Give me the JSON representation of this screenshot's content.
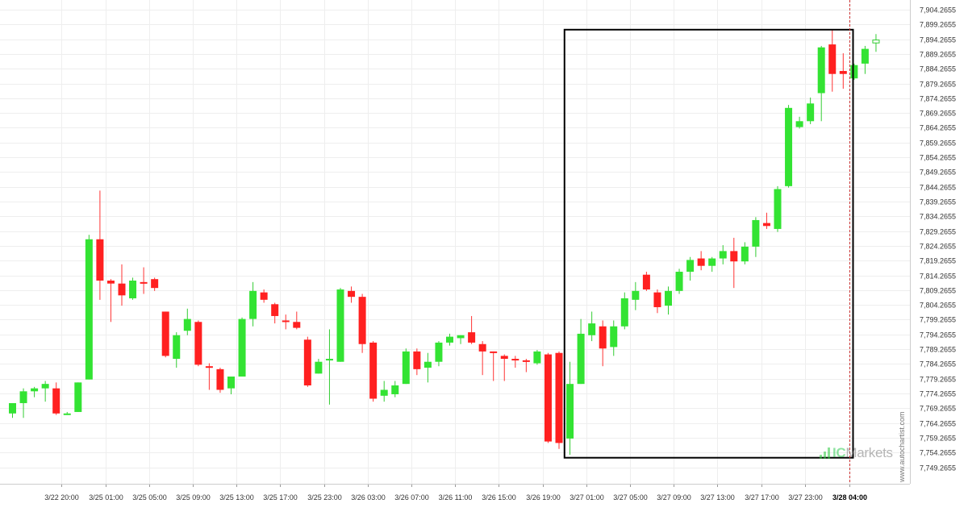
{
  "chart_data": {
    "type": "candlestick",
    "price_axis": {
      "min": 7746.0,
      "max": 7905.5,
      "labels": [
        "7,904.2655",
        "7,899.2655",
        "7,894.2655",
        "7,889.2655",
        "7,884.2655",
        "7,879.2655",
        "7,874.2655",
        "7,869.2655",
        "7,864.2655",
        "7,859.2655",
        "7,854.2655",
        "7,849.2655",
        "7,844.2655",
        "7,839.2655",
        "7,834.2655",
        "7,829.2655",
        "7,824.2655",
        "7,819.2655",
        "7,814.2655",
        "7,809.2655",
        "7,804.2655",
        "7,799.2655",
        "7,794.2655",
        "7,789.2655",
        "7,784.2655",
        "7,779.2655",
        "7,774.2655",
        "7,769.2655",
        "7,764.2655",
        "7,759.2655",
        "7,754.2655",
        "7,749.2655"
      ],
      "values": [
        7904.2655,
        7899.2655,
        7894.2655,
        7889.2655,
        7884.2655,
        7879.2655,
        7874.2655,
        7869.2655,
        7864.2655,
        7859.2655,
        7854.2655,
        7849.2655,
        7844.2655,
        7839.2655,
        7834.2655,
        7829.2655,
        7824.2655,
        7819.2655,
        7814.2655,
        7809.2655,
        7804.2655,
        7799.2655,
        7794.2655,
        7789.2655,
        7784.2655,
        7779.2655,
        7774.2655,
        7769.2655,
        7764.2655,
        7759.2655,
        7754.2655,
        7749.2655
      ]
    },
    "time_axis": {
      "labels": [
        {
          "text": "3/22 20:00",
          "index": 4.5,
          "bold": false
        },
        {
          "text": "3/25 01:00",
          "index": 8.5,
          "bold": false
        },
        {
          "text": "3/25 05:00",
          "index": 12.5,
          "bold": false
        },
        {
          "text": "3/25 09:00",
          "index": 16.5,
          "bold": false
        },
        {
          "text": "3/25 13:00",
          "index": 20.5,
          "bold": false
        },
        {
          "text": "3/25 17:00",
          "index": 24.5,
          "bold": false
        },
        {
          "text": "3/25 23:00",
          "index": 28.5,
          "bold": false
        },
        {
          "text": "3/26 03:00",
          "index": 32.5,
          "bold": false
        },
        {
          "text": "3/26 07:00",
          "index": 36.5,
          "bold": false
        },
        {
          "text": "3/26 11:00",
          "index": 40.5,
          "bold": false
        },
        {
          "text": "3/26 15:00",
          "index": 44.5,
          "bold": false
        },
        {
          "text": "3/26 19:00",
          "index": 48.5,
          "bold": false
        },
        {
          "text": "3/27 01:00",
          "index": 52.5,
          "bold": false
        },
        {
          "text": "3/27 05:00",
          "index": 56.5,
          "bold": false
        },
        {
          "text": "3/27 09:00",
          "index": 60.5,
          "bold": false
        },
        {
          "text": "3/27 13:00",
          "index": 64.5,
          "bold": false
        },
        {
          "text": "3/27 17:00",
          "index": 68.5,
          "bold": false
        },
        {
          "text": "3/27 23:00",
          "index": 72.5,
          "bold": false
        },
        {
          "text": "3/28 04:00",
          "index": 76.6,
          "bold": true
        }
      ]
    },
    "candles": [
      {
        "o": 7767.5,
        "h": 7771.0,
        "l": 7766.0,
        "c": 7771.0
      },
      {
        "o": 7771.0,
        "h": 7776.0,
        "l": 7766.0,
        "c": 7775.0
      },
      {
        "o": 7775.0,
        "h": 7776.5,
        "l": 7773.0,
        "c": 7776.0
      },
      {
        "o": 7776.0,
        "h": 7778.5,
        "l": 7771.5,
        "c": 7777.5
      },
      {
        "o": 7776.0,
        "h": 7778.0,
        "l": 7767.0,
        "c": 7767.5
      },
      {
        "o": 7767.5,
        "h": 7768.0,
        "l": 7767.0,
        "c": 7767.5
      },
      {
        "o": 7768.0,
        "h": 7778.0,
        "l": 7768.0,
        "c": 7778.0
      },
      {
        "o": 7779.0,
        "h": 7828.0,
        "l": 7779.0,
        "c": 7826.5
      },
      {
        "o": 7826.5,
        "h": 7843.0,
        "l": 7806.0,
        "c": 7812.5
      },
      {
        "o": 7812.5,
        "h": 7813.0,
        "l": 7798.5,
        "c": 7811.5
      },
      {
        "o": 7811.5,
        "h": 7818.0,
        "l": 7804.0,
        "c": 7807.5
      },
      {
        "o": 7806.5,
        "h": 7813.5,
        "l": 7806.0,
        "c": 7812.5
      },
      {
        "o": 7812.0,
        "h": 7817.0,
        "l": 7808.0,
        "c": 7811.5
      },
      {
        "o": 7813.0,
        "h": 7813.5,
        "l": 7809.0,
        "c": 7810.0
      },
      {
        "o": 7802.0,
        "h": 7802.0,
        "l": 7786.5,
        "c": 7787.0
      },
      {
        "o": 7786.0,
        "h": 7795.0,
        "l": 7783.0,
        "c": 7794.0
      },
      {
        "o": 7795.5,
        "h": 7803.0,
        "l": 7794.0,
        "c": 7799.5
      },
      {
        "o": 7798.5,
        "h": 7799.0,
        "l": 7783.5,
        "c": 7784.0
      },
      {
        "o": 7783.5,
        "h": 7784.5,
        "l": 7775.5,
        "c": 7783.0
      },
      {
        "o": 7782.5,
        "h": 7783.0,
        "l": 7774.5,
        "c": 7775.5
      },
      {
        "o": 7776.0,
        "h": 7780.0,
        "l": 7774.0,
        "c": 7780.0
      },
      {
        "o": 7780.0,
        "h": 7800.0,
        "l": 7780.0,
        "c": 7799.5
      },
      {
        "o": 7799.5,
        "h": 7812.0,
        "l": 7797.0,
        "c": 7809.0
      },
      {
        "o": 7808.5,
        "h": 7809.5,
        "l": 7805.0,
        "c": 7806.0
      },
      {
        "o": 7804.5,
        "h": 7805.0,
        "l": 7798.0,
        "c": 7800.5
      },
      {
        "o": 7799.0,
        "h": 7801.0,
        "l": 7796.0,
        "c": 7798.5
      },
      {
        "o": 7798.5,
        "h": 7802.0,
        "l": 7796.0,
        "c": 7796.5
      },
      {
        "o": 7792.5,
        "h": 7793.5,
        "l": 7776.5,
        "c": 7777.0
      },
      {
        "o": 7781.0,
        "h": 7786.0,
        "l": 7781.0,
        "c": 7785.0
      },
      {
        "o": 7786.0,
        "h": 7796.0,
        "l": 7770.5,
        "c": 7786.0
      },
      {
        "o": 7785.0,
        "h": 7810.0,
        "l": 7785.0,
        "c": 7809.5
      },
      {
        "o": 7809.0,
        "h": 7810.5,
        "l": 7805.0,
        "c": 7807.0
      },
      {
        "o": 7807.0,
        "h": 7808.0,
        "l": 7788.0,
        "c": 7791.0
      },
      {
        "o": 7791.5,
        "h": 7792.0,
        "l": 7771.5,
        "c": 7772.5
      },
      {
        "o": 7773.5,
        "h": 7778.5,
        "l": 7771.5,
        "c": 7775.5
      },
      {
        "o": 7774.0,
        "h": 7778.5,
        "l": 7773.0,
        "c": 7777.0
      },
      {
        "o": 7777.5,
        "h": 7789.5,
        "l": 7777.5,
        "c": 7788.5
      },
      {
        "o": 7788.5,
        "h": 7789.5,
        "l": 7780.5,
        "c": 7782.5
      },
      {
        "o": 7783.0,
        "h": 7788.0,
        "l": 7778.0,
        "c": 7785.0
      },
      {
        "o": 7785.0,
        "h": 7792.0,
        "l": 7783.5,
        "c": 7791.5
      },
      {
        "o": 7791.5,
        "h": 7794.5,
        "l": 7790.5,
        "c": 7793.5
      },
      {
        "o": 7793.0,
        "h": 7794.0,
        "l": 7791.0,
        "c": 7794.0
      },
      {
        "o": 7795.0,
        "h": 7800.5,
        "l": 7791.0,
        "c": 7791.5
      },
      {
        "o": 7791.0,
        "h": 7792.0,
        "l": 7780.5,
        "c": 7788.5
      },
      {
        "o": 7788.5,
        "h": 7788.5,
        "l": 7778.5,
        "c": 7788.0
      },
      {
        "o": 7787.0,
        "h": 7787.5,
        "l": 7778.5,
        "c": 7786.0
      },
      {
        "o": 7786.0,
        "h": 7787.0,
        "l": 7783.0,
        "c": 7785.5
      },
      {
        "o": 7785.5,
        "h": 7786.0,
        "l": 7781.5,
        "c": 7785.0
      },
      {
        "o": 7784.5,
        "h": 7789.0,
        "l": 7784.0,
        "c": 7788.5
      },
      {
        "o": 7787.5,
        "h": 7788.0,
        "l": 7757.5,
        "c": 7758.0
      },
      {
        "o": 7788.0,
        "h": 7788.5,
        "l": 7755.5,
        "c": 7757.5
      },
      {
        "o": 7759.0,
        "h": 7785.0,
        "l": 7753.5,
        "c": 7777.5
      },
      {
        "o": 7777.5,
        "h": 7799.5,
        "l": 7777.5,
        "c": 7794.5
      },
      {
        "o": 7794.0,
        "h": 7802.0,
        "l": 7792.0,
        "c": 7798.0
      },
      {
        "o": 7797.0,
        "h": 7799.0,
        "l": 7783.5,
        "c": 7789.5
      },
      {
        "o": 7790.0,
        "h": 7799.0,
        "l": 7787.0,
        "c": 7797.0
      },
      {
        "o": 7797.0,
        "h": 7808.5,
        "l": 7796.0,
        "c": 7806.5
      },
      {
        "o": 7806.0,
        "h": 7812.0,
        "l": 7802.5,
        "c": 7809.0
      },
      {
        "o": 7814.5,
        "h": 7815.5,
        "l": 7809.0,
        "c": 7809.5
      },
      {
        "o": 7808.5,
        "h": 7809.5,
        "l": 7801.5,
        "c": 7803.5
      },
      {
        "o": 7804.0,
        "h": 7810.5,
        "l": 7801.0,
        "c": 7809.0
      },
      {
        "o": 7809.0,
        "h": 7816.5,
        "l": 7808.0,
        "c": 7815.5
      },
      {
        "o": 7815.5,
        "h": 7820.5,
        "l": 7812.5,
        "c": 7819.5
      },
      {
        "o": 7820.0,
        "h": 7822.5,
        "l": 7816.0,
        "c": 7817.5
      },
      {
        "o": 7817.5,
        "h": 7820.5,
        "l": 7815.5,
        "c": 7820.0
      },
      {
        "o": 7820.0,
        "h": 7824.5,
        "l": 7818.0,
        "c": 7822.5
      },
      {
        "o": 7822.5,
        "h": 7827.0,
        "l": 7810.0,
        "c": 7819.0
      },
      {
        "o": 7819.0,
        "h": 7825.5,
        "l": 7818.0,
        "c": 7824.0
      },
      {
        "o": 7824.0,
        "h": 7834.0,
        "l": 7820.5,
        "c": 7833.0
      },
      {
        "o": 7832.0,
        "h": 7835.5,
        "l": 7830.0,
        "c": 7831.0
      },
      {
        "o": 7830.0,
        "h": 7844.5,
        "l": 7829.0,
        "c": 7843.5
      },
      {
        "o": 7844.5,
        "h": 7872.0,
        "l": 7844.0,
        "c": 7871.0
      },
      {
        "o": 7864.5,
        "h": 7868.0,
        "l": 7864.0,
        "c": 7866.5
      },
      {
        "o": 7866.5,
        "h": 7874.5,
        "l": 7865.5,
        "c": 7872.5
      },
      {
        "o": 7876.0,
        "h": 7892.0,
        "l": 7866.5,
        "c": 7891.5
      },
      {
        "o": 7892.5,
        "h": 7897.5,
        "l": 7876.5,
        "c": 7882.5
      },
      {
        "o": 7883.5,
        "h": 7889.5,
        "l": 7877.5,
        "c": 7882.5
      },
      {
        "o": 7881.0,
        "h": 7886.0,
        "l": 7880.5,
        "c": 7885.5
      },
      {
        "o": 7886.0,
        "h": 7892.0,
        "l": 7882.5,
        "c": 7891.0
      },
      {
        "o": 7893.0,
        "h": 7896.0,
        "l": 7890.0,
        "c": 7894.0
      }
    ],
    "highlight_box": {
      "from_index": 50.5,
      "to_index": 76.9,
      "price_high": 7897.5,
      "price_low": 7752.5
    },
    "current_time_index": 76.6,
    "watermark": "www.autochartist.com",
    "brand_ic": "IC",
    "brand_markets": "Markets",
    "colors": {
      "up": "#33e333",
      "down": "#ff2020",
      "wick_up": "#33cc33",
      "wick_down": "#ff3333",
      "last": "#33cc33",
      "grid": "#eeeeee",
      "box": "#000000",
      "axis": "#cccccc"
    }
  }
}
